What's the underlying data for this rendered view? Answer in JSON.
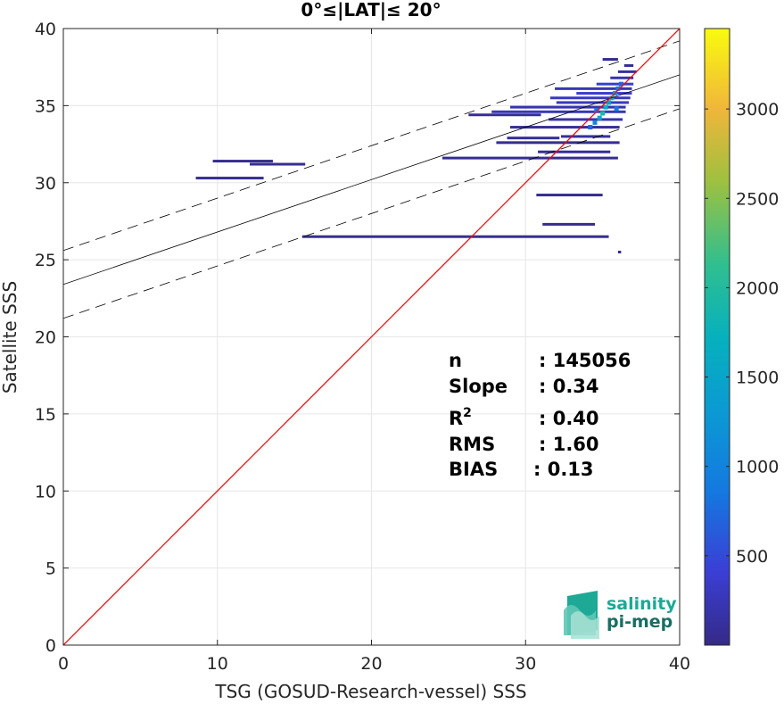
{
  "chart_data": {
    "type": "heatmap",
    "title": "0°≤|LAT|≤ 20°",
    "xlabel": "TSG (GOSUD-Research-vessel) SSS",
    "ylabel": "Satellite SSS",
    "xlim": [
      0,
      40
    ],
    "ylim": [
      0,
      40
    ],
    "x_ticks": [
      "0",
      "10",
      "20",
      "30",
      "40"
    ],
    "y_ticks": [
      "0",
      "5",
      "10",
      "15",
      "20",
      "25",
      "30",
      "35",
      "40"
    ],
    "grid": true,
    "colorbar": {
      "range": [
        0,
        3450
      ],
      "ticks": [
        "500",
        "1000",
        "1500",
        "2000",
        "2500",
        "3000"
      ],
      "tick_values": [
        500,
        1000,
        1500,
        2000,
        2500,
        3000
      ],
      "colormap": "parula"
    },
    "identity_line": {
      "x": [
        0,
        40
      ],
      "y": [
        0,
        40
      ],
      "color": "#ff0000"
    },
    "fit_line": {
      "intercept": 23.4,
      "slope": 0.34
    },
    "fit_bounds": {
      "upper_intercept": 25.6,
      "lower_intercept": 21.2,
      "slope": 0.34
    },
    "stats": [
      {
        "key": "n",
        "value": ": 145056"
      },
      {
        "key": "Slope",
        "value": ": 0.34"
      },
      {
        "key": "R",
        "sup": "2",
        "value": ": 0.40"
      },
      {
        "key": "RMS",
        "value": ": 1.60"
      },
      {
        "key": "BIAS",
        "value": ": 0.13"
      }
    ],
    "segments": [
      {
        "x0": 8.6,
        "x1": 13.0,
        "y": 30.3,
        "count": 60
      },
      {
        "x0": 9.7,
        "x1": 13.6,
        "y": 31.4,
        "count": 40
      },
      {
        "x0": 12.1,
        "x1": 15.7,
        "y": 31.2,
        "count": 60
      },
      {
        "x0": 15.5,
        "x1": 35.4,
        "y": 26.5,
        "count": 60
      },
      {
        "x0": 24.6,
        "x1": 36.0,
        "y": 31.6,
        "count": 60
      },
      {
        "x0": 30.7,
        "x1": 35.0,
        "y": 29.2,
        "count": 30
      },
      {
        "x0": 31.1,
        "x1": 34.5,
        "y": 27.3,
        "count": 30
      },
      {
        "x0": 30.8,
        "x1": 35.5,
        "y": 32.0,
        "count": 60
      },
      {
        "x0": 28.1,
        "x1": 36.1,
        "y": 32.6,
        "count": 60
      },
      {
        "x0": 28.8,
        "x1": 32.2,
        "y": 32.9,
        "count": 80
      },
      {
        "x0": 32.3,
        "x1": 35.5,
        "y": 33.0,
        "count": 120
      },
      {
        "x0": 29.0,
        "x1": 36.1,
        "y": 33.6,
        "count": 90
      },
      {
        "x0": 31.5,
        "x1": 36.3,
        "y": 34.1,
        "count": 200
      },
      {
        "x0": 26.3,
        "x1": 31.0,
        "y": 34.4,
        "count": 80
      },
      {
        "x0": 27.8,
        "x1": 36.5,
        "y": 34.6,
        "count": 250
      },
      {
        "x0": 29.0,
        "x1": 36.5,
        "y": 34.9,
        "count": 200
      },
      {
        "x0": 32.0,
        "x1": 36.7,
        "y": 35.2,
        "count": 300
      },
      {
        "x0": 31.6,
        "x1": 36.8,
        "y": 35.5,
        "count": 300
      },
      {
        "x0": 33.3,
        "x1": 36.9,
        "y": 35.8,
        "count": 400
      },
      {
        "x0": 31.9,
        "x1": 36.9,
        "y": 36.1,
        "count": 250
      },
      {
        "x0": 34.6,
        "x1": 37.0,
        "y": 36.4,
        "count": 400
      },
      {
        "x0": 35.5,
        "x1": 37.0,
        "y": 36.8,
        "count": 200
      },
      {
        "x0": 36.0,
        "x1": 37.2,
        "y": 37.2,
        "count": 120
      },
      {
        "x0": 35.0,
        "x1": 36.0,
        "y": 38.0,
        "count": 30
      },
      {
        "x0": 36.4,
        "x1": 37.0,
        "y": 37.6,
        "count": 80
      },
      {
        "x0": 36.0,
        "x1": 36.2,
        "y": 25.5,
        "count": 20
      }
    ],
    "hot_cells": [
      {
        "x": 34.2,
        "y": 33.6,
        "count": 700
      },
      {
        "x": 34.5,
        "y": 33.9,
        "count": 1100
      },
      {
        "x": 34.8,
        "y": 34.2,
        "count": 1500
      },
      {
        "x": 35.0,
        "y": 34.5,
        "count": 1900
      },
      {
        "x": 35.2,
        "y": 34.9,
        "count": 1700
      },
      {
        "x": 35.4,
        "y": 35.2,
        "count": 1400
      },
      {
        "x": 35.6,
        "y": 35.5,
        "count": 1800
      },
      {
        "x": 35.8,
        "y": 35.8,
        "count": 1300
      },
      {
        "x": 36.0,
        "y": 36.1,
        "count": 900
      },
      {
        "x": 36.2,
        "y": 36.4,
        "count": 700
      },
      {
        "x": 35.9,
        "y": 34.8,
        "count": 900
      },
      {
        "x": 34.6,
        "y": 34.7,
        "count": 900
      }
    ]
  },
  "logo": {
    "line1": "salinity",
    "line2": "pi-mep"
  }
}
